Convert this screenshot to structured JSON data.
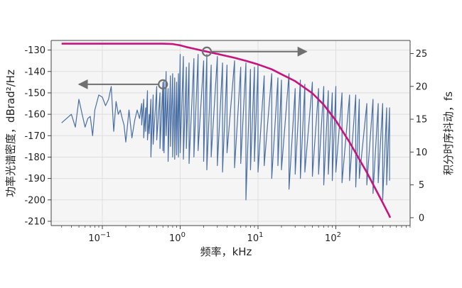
{
  "chart_data": {
    "type": "line",
    "title": "",
    "xlabel": "频率，kHz",
    "ylabel_left": "功率光谱密度，dBrad²/Hz",
    "ylabel_right": "积分时序抖动，fs",
    "x_scale": "log",
    "xlim": [
      0.022,
      900
    ],
    "ylim_left": [
      -212,
      -125.5
    ],
    "ylim_right": [
      -1.2,
      27
    ],
    "grid": true,
    "legend": "none",
    "x_ticks": [
      {
        "value": 0.1,
        "base": "10",
        "exp": "−1"
      },
      {
        "value": 1,
        "base": "10",
        "exp": "0"
      },
      {
        "value": 10,
        "base": "10",
        "exp": "1"
      },
      {
        "value": 100,
        "base": "10",
        "exp": "2"
      }
    ],
    "y_ticks_left": [
      {
        "value": -130,
        "label": "-130"
      },
      {
        "value": -140,
        "label": "-140"
      },
      {
        "value": -150,
        "label": "-150"
      },
      {
        "value": -160,
        "label": "-160"
      },
      {
        "value": -170,
        "label": "-170"
      },
      {
        "value": -180,
        "label": "-180"
      },
      {
        "value": -190,
        "label": "-190"
      },
      {
        "value": -200,
        "label": "-200"
      },
      {
        "value": -210,
        "label": "-210"
      }
    ],
    "y_ticks_right": [
      {
        "value": 0,
        "label": "0"
      },
      {
        "value": 5,
        "label": "5"
      },
      {
        "value": 10,
        "label": "10"
      },
      {
        "value": 15,
        "label": "15"
      },
      {
        "value": 20,
        "label": "20"
      },
      {
        "value": 25,
        "label": "25"
      }
    ],
    "series": [
      {
        "axis": "left",
        "color": "#4a6fa5",
        "x": [
          0.03,
          0.04,
          0.045,
          0.05,
          0.055,
          0.06,
          0.065,
          0.07,
          0.075,
          0.08,
          0.09,
          0.1,
          0.11,
          0.12,
          0.13,
          0.14,
          0.15,
          0.16,
          0.17,
          0.18,
          0.19,
          0.2,
          0.22,
          0.24,
          0.26,
          0.28,
          0.3,
          0.32,
          0.34,
          0.36,
          0.38,
          0.4,
          0.42,
          0.45,
          0.5,
          0.55,
          0.6,
          0.62,
          0.66,
          0.7,
          0.75,
          0.8,
          0.85,
          0.9,
          0.95,
          1.0,
          1.1,
          1.2,
          1.3,
          1.5,
          1.7,
          2.0,
          2.2,
          2.5,
          3.0,
          3.5,
          4.0,
          5.0,
          6.0,
          7.0,
          8.0,
          9.0,
          10,
          12,
          15,
          18,
          20,
          25,
          30,
          35,
          40,
          50,
          60,
          70,
          80,
          90,
          100,
          120,
          150,
          180,
          200,
          250,
          300,
          350,
          400,
          450,
          490
        ],
        "upper": [
          -164,
          -160,
          -166,
          -153,
          -160,
          -166,
          -162,
          -161,
          -170,
          -158,
          -151,
          -152,
          -156,
          -153,
          -147,
          -168,
          -154,
          -160,
          -158,
          -162,
          -165,
          -173,
          -158,
          -171,
          -163,
          -158,
          -162,
          -155,
          -153,
          -157,
          -149,
          -160,
          -153,
          -151,
          -147,
          -150,
          -145,
          -144,
          -140,
          -148,
          -142,
          -141,
          -143,
          -145,
          -141,
          -132,
          -133,
          -138,
          -136,
          -134,
          -132,
          -135,
          -132,
          -137,
          -133,
          -136,
          -137,
          -135,
          -138,
          -136,
          -139,
          -138,
          -137,
          -142,
          -141,
          -143,
          -144,
          -141,
          -148,
          -144,
          -146,
          -145,
          -148,
          -147,
          -149,
          -150,
          -147,
          -150,
          -151,
          -151,
          -153,
          -155,
          -153,
          -155,
          -155,
          -157,
          -157
        ],
        "lower": [
          -164,
          -160,
          -166,
          -153,
          -160,
          -166,
          -162,
          -161,
          -170,
          -158,
          -151,
          -152,
          -156,
          -153,
          -147,
          -168,
          -154,
          -160,
          -158,
          -162,
          -165,
          -173,
          -158,
          -171,
          -163,
          -158,
          -162,
          -165,
          -171,
          -168,
          -172,
          -169,
          -180,
          -174,
          -172,
          -176,
          -177,
          -178,
          -170,
          -182,
          -175,
          -180,
          -181,
          -179,
          -180,
          -178,
          -181,
          -176,
          -183,
          -180,
          -177,
          -182,
          -186,
          -180,
          -184,
          -187,
          -178,
          -185,
          -183,
          -200,
          -186,
          -182,
          -187,
          -184,
          -190,
          -184,
          -186,
          -195,
          -188,
          -190,
          -187,
          -189,
          -188,
          -193,
          -188,
          -191,
          -187,
          -192,
          -191,
          -194,
          -190,
          -193,
          -197,
          -192,
          -200,
          -193,
          -191
        ]
      },
      {
        "axis": "right",
        "color": "#c7137e",
        "x": [
          0.03,
          0.6,
          0.8,
          1.0,
          1.2,
          1.5,
          2.0,
          3.0,
          5.0,
          7.0,
          10,
          15,
          20,
          30,
          50,
          70,
          100,
          150,
          200,
          250,
          300,
          350,
          400,
          450,
          480,
          500
        ],
        "y": [
          26.5,
          26.5,
          26.45,
          26.25,
          26.0,
          25.75,
          25.4,
          24.95,
          24.35,
          23.9,
          23.35,
          22.6,
          21.85,
          20.8,
          18.95,
          17.2,
          14.8,
          11.5,
          8.9,
          6.9,
          5.1,
          3.6,
          2.3,
          1.1,
          0.45,
          0.0
        ]
      }
    ],
    "annotations": [
      {
        "type": "circle-arrow",
        "axis": "left",
        "x": 0.6,
        "y": -146,
        "direction": "left",
        "x_end": 0.05
      },
      {
        "type": "circle-arrow",
        "axis": "right",
        "x": 2.2,
        "y": 25.3,
        "direction": "right",
        "x_end": 42
      }
    ]
  }
}
